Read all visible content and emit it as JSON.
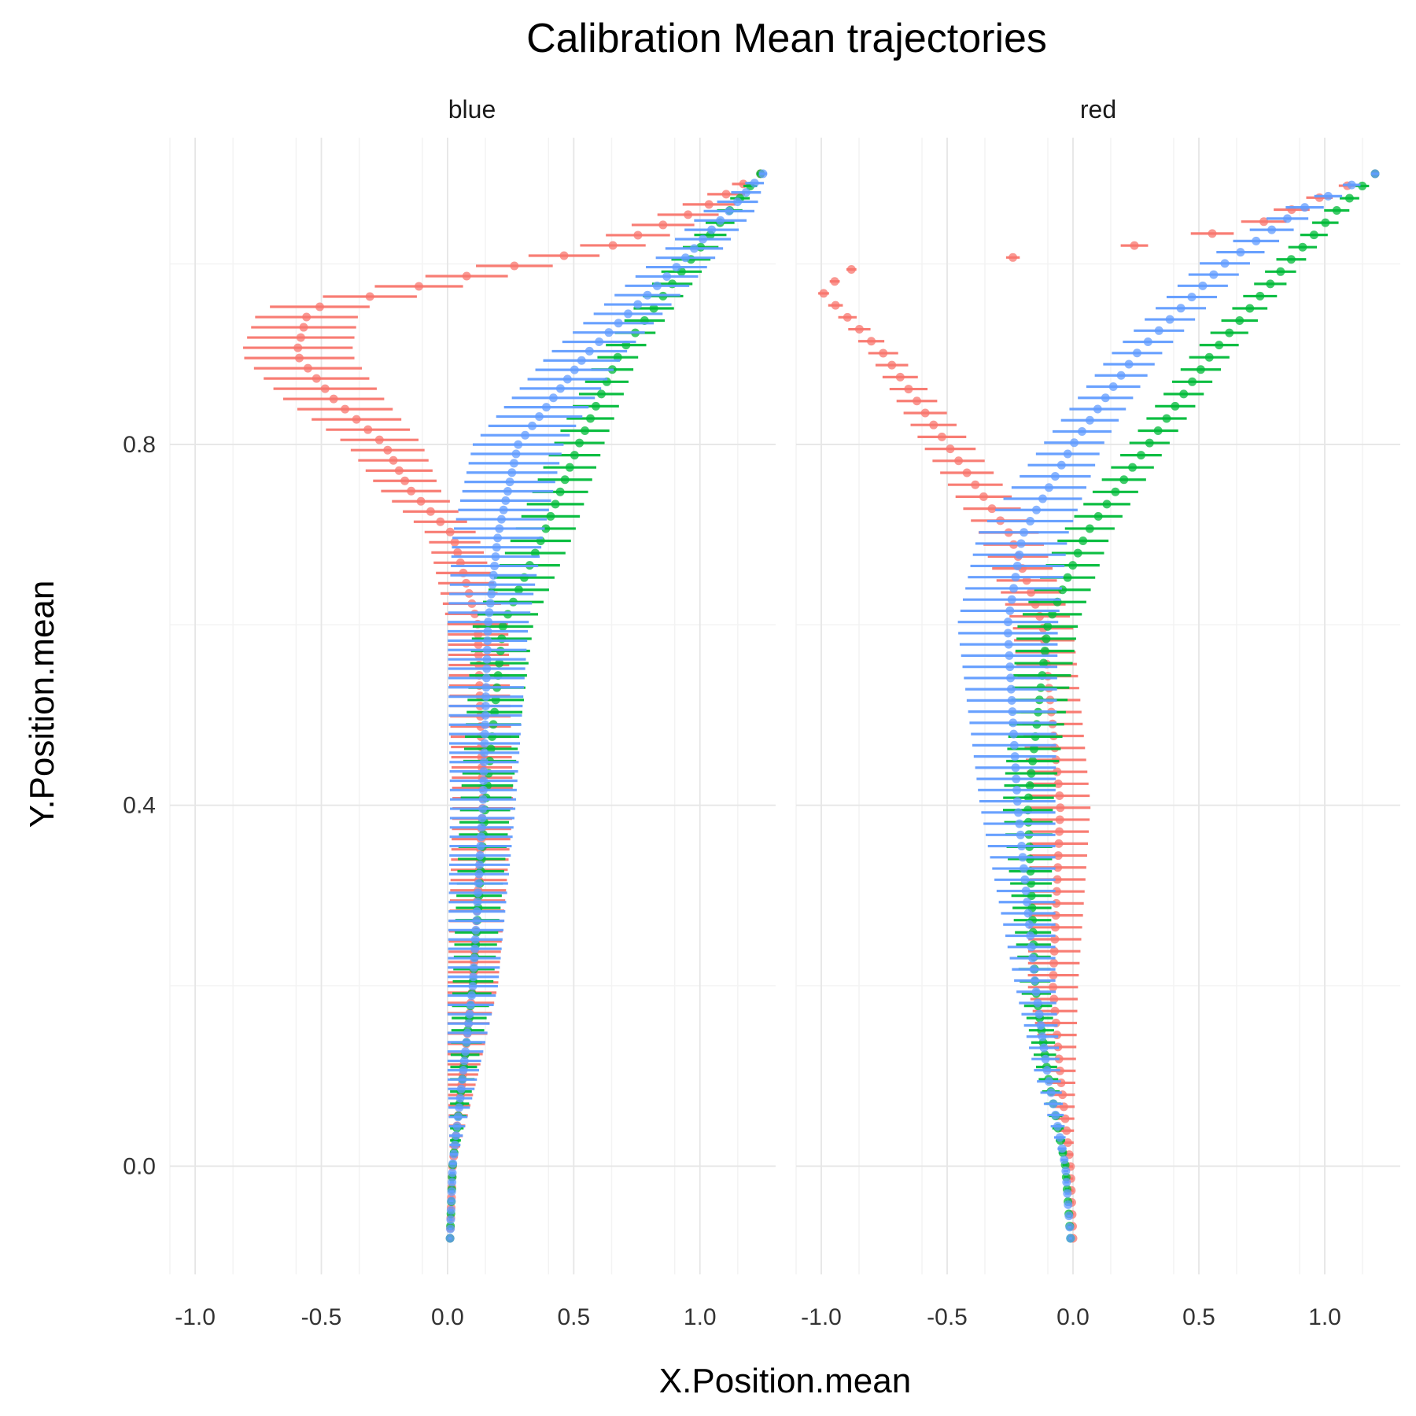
{
  "chart_data": {
    "type": "scatter",
    "title": "Calibration Mean trajectories",
    "xlabel": "X.Position.mean",
    "ylabel": "Y.Position.mean",
    "xlim": [
      -1.1,
      1.3
    ],
    "ylim": [
      -0.12,
      1.14
    ],
    "x_ticks": [
      -1.0,
      -0.5,
      0.0,
      0.5,
      1.0
    ],
    "x_tick_labels": [
      "-1.0",
      "-0.5",
      "0.0",
      "0.5",
      "1.0"
    ],
    "y_ticks": [
      0.0,
      0.4,
      0.8
    ],
    "y_tick_labels": [
      "0.0",
      "0.4",
      "0.8"
    ],
    "grid": true,
    "error_bars": "horizontal",
    "colors": {
      "red": "#F8766D",
      "green": "#00BA38",
      "blue": "#619CFF"
    },
    "panels": [
      {
        "name": "blue",
        "series": [
          {
            "color": "red",
            "x_min": 0.0,
            "x_max": 0.7,
            "steps": 105,
            "keys": [
              [
                -0.08,
                0.01,
                0.006
              ],
              [
                0.0,
                0.02,
                0.01
              ],
              [
                0.1,
                0.06,
                0.06
              ],
              [
                0.2,
                0.1,
                0.1
              ],
              [
                0.4,
                0.14,
                0.12
              ],
              [
                0.6,
                0.12,
                0.12
              ],
              [
                0.7,
                0.02,
                0.1
              ],
              [
                0.75,
                -0.15,
                0.12
              ],
              [
                0.8,
                -0.25,
                0.15
              ],
              [
                0.85,
                -0.45,
                0.2
              ],
              [
                0.9,
                -0.6,
                0.22
              ],
              [
                0.95,
                -0.55,
                0.2
              ],
              [
                0.97,
                -0.2,
                0.18
              ],
              [
                1.0,
                0.3,
                0.15
              ],
              [
                1.02,
                0.65,
                0.13
              ],
              [
                1.06,
                1.0,
                0.12
              ],
              [
                1.1,
                1.24,
                0.015
              ]
            ]
          },
          {
            "color": "green",
            "x_min": 0.0,
            "x_max": 0.7,
            "steps": 88,
            "keys": [
              [
                -0.08,
                0.01,
                0.006
              ],
              [
                0.0,
                0.02,
                0.01
              ],
              [
                0.1,
                0.06,
                0.05
              ],
              [
                0.2,
                0.1,
                0.08
              ],
              [
                0.4,
                0.15,
                0.1
              ],
              [
                0.6,
                0.22,
                0.12
              ],
              [
                0.7,
                0.38,
                0.12
              ],
              [
                0.8,
                0.52,
                0.1
              ],
              [
                0.9,
                0.68,
                0.08
              ],
              [
                1.0,
                0.95,
                0.08
              ],
              [
                1.06,
                1.12,
                0.05
              ],
              [
                1.1,
                1.24,
                0.015
              ]
            ]
          },
          {
            "color": "blue",
            "x_min": 0.0,
            "x_max": 0.7,
            "steps": 115,
            "keys": [
              [
                -0.08,
                0.01,
                0.006
              ],
              [
                0.0,
                0.02,
                0.01
              ],
              [
                0.1,
                0.06,
                0.06
              ],
              [
                0.2,
                0.1,
                0.1
              ],
              [
                0.4,
                0.14,
                0.13
              ],
              [
                0.6,
                0.16,
                0.16
              ],
              [
                0.7,
                0.2,
                0.18
              ],
              [
                0.8,
                0.28,
                0.18
              ],
              [
                0.9,
                0.55,
                0.15
              ],
              [
                1.0,
                0.92,
                0.12
              ],
              [
                1.06,
                1.12,
                0.1
              ],
              [
                1.1,
                1.25,
                0.015
              ]
            ]
          }
        ]
      },
      {
        "name": "red",
        "series": [
          {
            "color": "red",
            "x_min": 0.0,
            "x_max": 0.7,
            "steps": 90,
            "keys": [
              [
                -0.08,
                0.0,
                0.006
              ],
              [
                0.0,
                -0.01,
                0.01
              ],
              [
                0.1,
                -0.05,
                0.06
              ],
              [
                0.2,
                -0.08,
                0.1
              ],
              [
                0.4,
                -0.05,
                0.12
              ],
              [
                0.6,
                -0.12,
                0.12
              ],
              [
                0.7,
                -0.25,
                0.12
              ],
              [
                0.8,
                -0.5,
                0.1
              ],
              [
                0.9,
                -0.75,
                0.06
              ],
              [
                0.97,
                -1.0,
                0.02
              ],
              [
                1.0,
                -0.85,
                0.02
              ],
              [
                1.01,
                0.0,
                0.03
              ],
              [
                1.04,
                0.7,
                0.1
              ],
              [
                1.1,
                1.2,
                0.015
              ]
            ]
          },
          {
            "color": "green",
            "x_min": 0.0,
            "x_max": 0.7,
            "steps": 88,
            "keys": [
              [
                -0.08,
                -0.01,
                0.006
              ],
              [
                0.0,
                -0.03,
                0.01
              ],
              [
                0.1,
                -0.1,
                0.04
              ],
              [
                0.2,
                -0.15,
                0.06
              ],
              [
                0.4,
                -0.18,
                0.1
              ],
              [
                0.6,
                -0.1,
                0.12
              ],
              [
                0.7,
                0.05,
                0.1
              ],
              [
                0.8,
                0.3,
                0.08
              ],
              [
                0.9,
                0.55,
                0.08
              ],
              [
                1.0,
                0.85,
                0.06
              ],
              [
                1.06,
                1.05,
                0.05
              ],
              [
                1.1,
                1.2,
                0.015
              ]
            ]
          },
          {
            "color": "blue",
            "x_min": 0.0,
            "x_max": 0.7,
            "steps": 96,
            "keys": [
              [
                -0.08,
                -0.01,
                0.006
              ],
              [
                0.0,
                -0.03,
                0.01
              ],
              [
                0.1,
                -0.1,
                0.05
              ],
              [
                0.2,
                -0.15,
                0.08
              ],
              [
                0.4,
                -0.22,
                0.15
              ],
              [
                0.6,
                -0.26,
                0.2
              ],
              [
                0.7,
                -0.2,
                0.18
              ],
              [
                0.8,
                0.0,
                0.12
              ],
              [
                0.9,
                0.25,
                0.1
              ],
              [
                1.0,
                0.6,
                0.1
              ],
              [
                1.06,
                0.9,
                0.08
              ],
              [
                1.1,
                1.2,
                0.015
              ]
            ]
          }
        ]
      }
    ]
  }
}
